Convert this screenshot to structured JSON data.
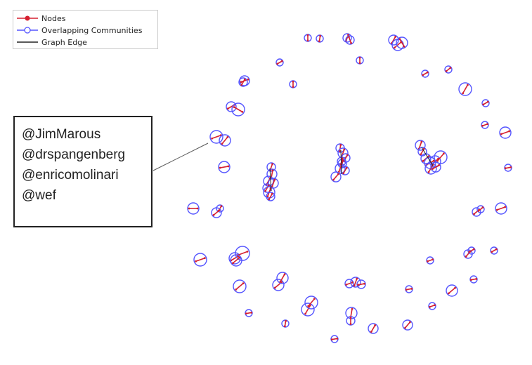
{
  "legend": {
    "nodes_label": "Nodes",
    "communities_label": "Overlapping Communities",
    "edge_label": "Graph Edge"
  },
  "callout": {
    "lines": [
      "@JimMarous",
      "@drspangenberg",
      "@enricomolinari",
      "@wef"
    ]
  },
  "colors": {
    "node": "#d62030",
    "community": "#5555ff",
    "edge": "#222222"
  }
}
